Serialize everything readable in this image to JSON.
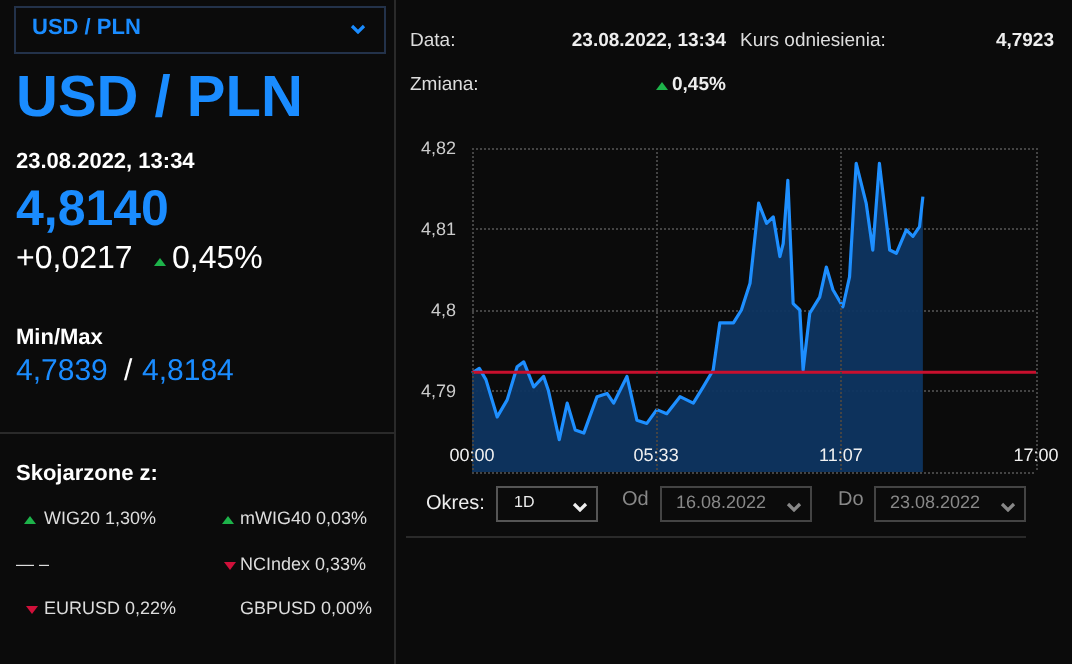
{
  "chart_data": {
    "type": "area",
    "annotations": [
      "USD / PLN",
      "USD / PLN",
      "23.08.2022, 13:34",
      "4,8140",
      "+0,0217",
      "0,45%",
      "Min/Max",
      "4,7839",
      "/",
      "4,8184",
      "Skojarzone z:",
      "WIG20 1,30%",
      "mWIG40 0,03%",
      "— –",
      "NCIndex 0,33%",
      "EURUSD 0,22%",
      "GBPUSD 0,00%",
      "Data:",
      "23.08.2022, 13:34",
      "Kurs odniesienia:",
      "4,7923",
      "Zmiana:",
      "0,45%",
      "Okres:",
      "1D",
      "Od",
      "16.08.2022",
      "Do",
      "23.08.2022"
    ],
    "x": [
      0,
      0.22,
      0.42,
      0.76,
      1.06,
      1.36,
      1.56,
      1.86,
      2.16,
      2.3,
      2.63,
      2.87,
      3.11,
      3.37,
      3.77,
      4.07,
      4.27,
      4.67,
      4.97,
      5.27,
      5.57,
      5.87,
      6.27,
      6.67,
      6.97,
      7.27,
      7.47,
      7.88,
      8.12,
      8.38,
      8.64,
      8.88,
      9.08,
      9.28,
      9.38,
      9.52,
      9.68,
      9.88,
      9.98,
      10.18,
      10.48,
      10.68,
      10.88,
      11.18,
      11.38,
      11.58,
      11.88,
      12.08,
      12.28,
      12.59,
      12.79,
      13.09,
      13.29,
      13.49,
      13.59
    ],
    "series": [
      {
        "color": "#1e8fff",
        "values": [
          4.7922,
          4.7928,
          4.7914,
          4.7868,
          4.7889,
          4.793,
          4.7936,
          4.7905,
          4.7918,
          4.7901,
          4.784,
          4.7885,
          4.7852,
          4.7848,
          4.7893,
          4.7897,
          4.7885,
          4.7918,
          4.7864,
          4.786,
          4.7877,
          4.7872,
          4.7893,
          4.7885,
          4.7905,
          4.7926,
          4.7984,
          4.7984,
          4.8,
          4.8033,
          4.8132,
          4.8107,
          4.8115,
          4.8066,
          4.8082,
          4.816,
          4.8008,
          4.8,
          4.7926,
          4.7996,
          4.8016,
          4.8053,
          4.8025,
          4.8004,
          4.8041,
          4.8181,
          4.8132,
          4.8074,
          4.8181,
          4.8074,
          4.807,
          4.8099,
          4.8091,
          4.8103,
          4.814
        ]
      }
    ],
    "xlim": [
      0,
      17
    ],
    "xticks": [
      {
        "value": 0,
        "label": "00:00"
      },
      {
        "value": 5.55,
        "label": "05:33"
      },
      {
        "value": 11.1167,
        "label": "11:07"
      },
      {
        "value": 17,
        "label": "17:00"
      }
    ],
    "ylim": [
      4.78,
      4.82
    ],
    "yticks": [
      {
        "value": 4.78,
        "label": null
      },
      {
        "value": 4.79,
        "label": "4,79"
      },
      {
        "value": 4.8,
        "label": "4,8"
      },
      {
        "value": 4.81,
        "label": "4,81"
      },
      {
        "value": 4.82,
        "label": "4,82"
      }
    ],
    "ref_lines": [
      {
        "axis": "y",
        "value": 4.7923,
        "color": "#c8102e"
      }
    ],
    "grid": true,
    "marker": "none",
    "line_style": "solid"
  }
}
